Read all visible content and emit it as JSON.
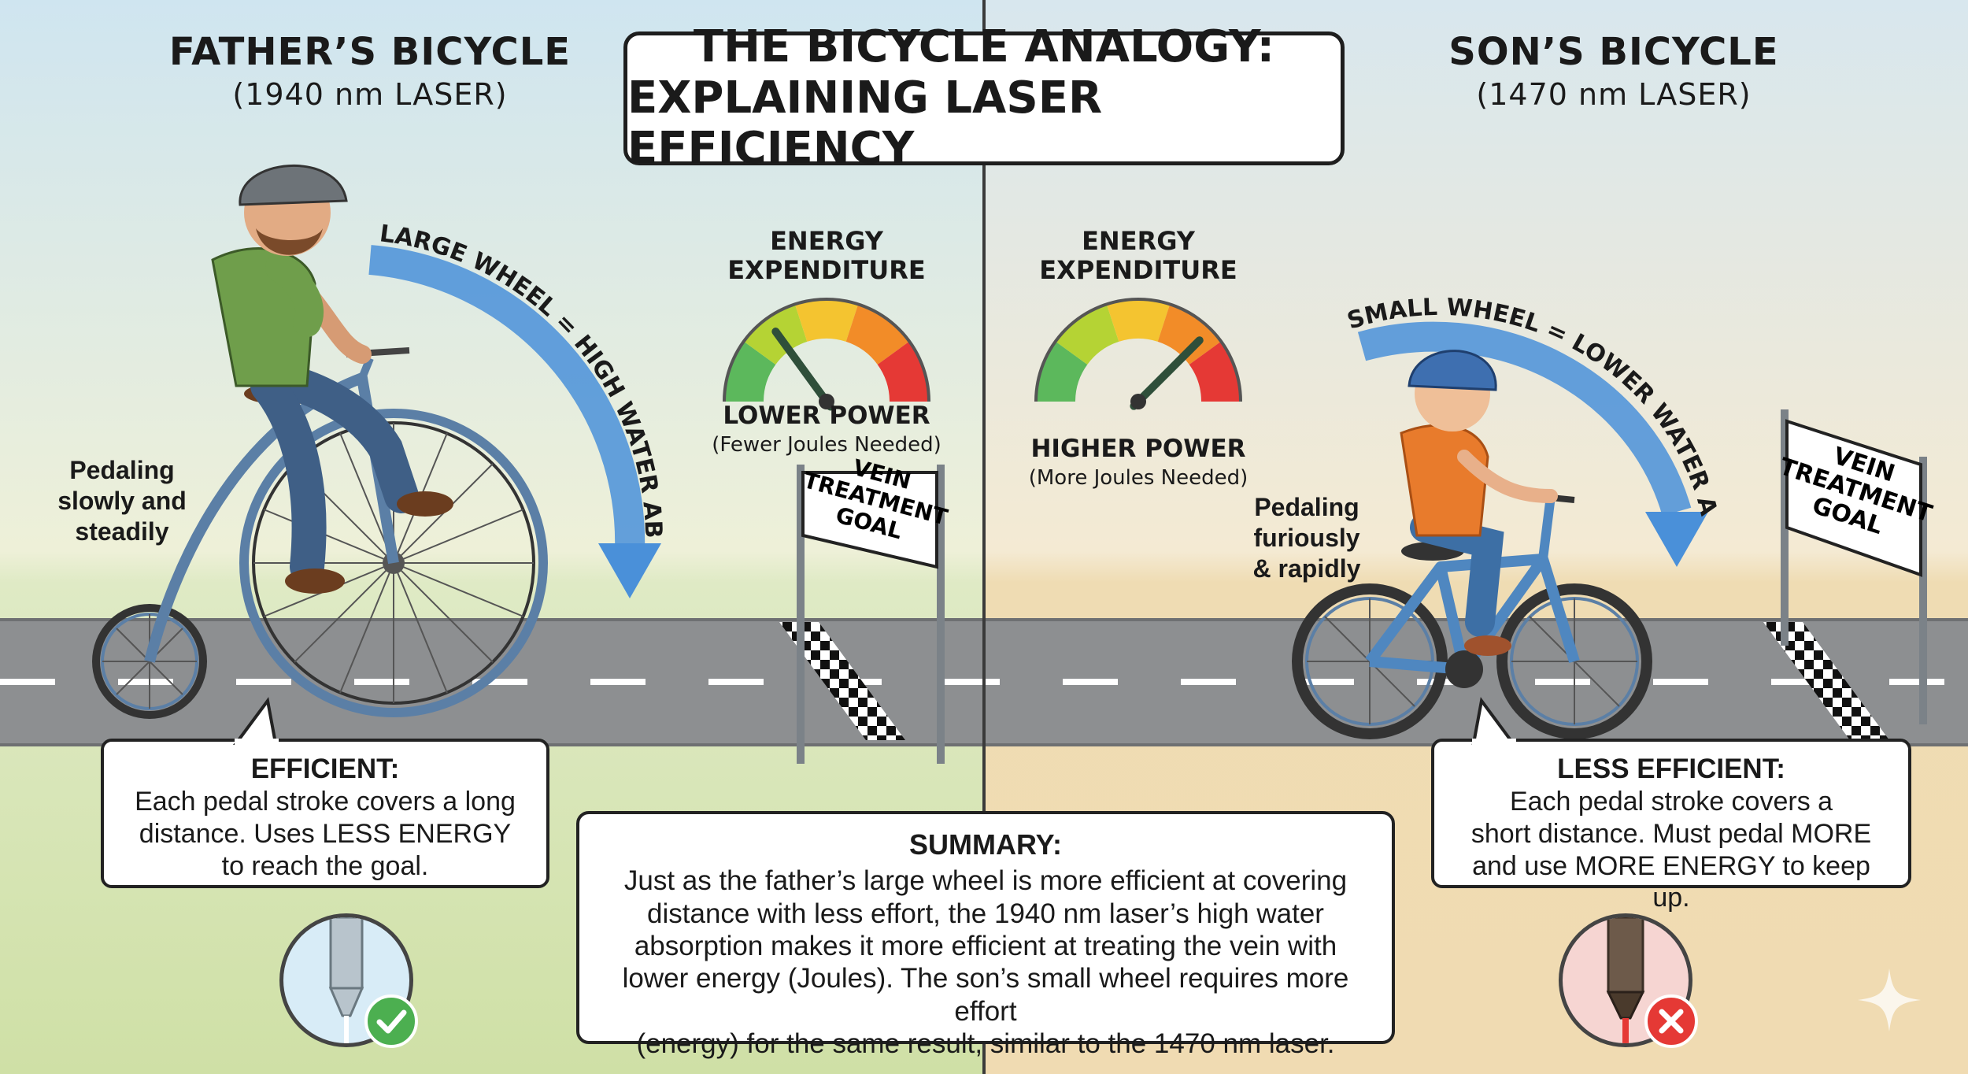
{
  "title": {
    "line1": "THE BICYCLE ANALOGY:",
    "line2": "EXPLAINING LASER EFFICIENCY"
  },
  "father": {
    "heading": "FATHER’S BICYCLE",
    "subheading": "(1940 nm LASER)",
    "arc_label": "LARGE WHEEL = HIGH WATER ABSORPTION",
    "pedal_note": [
      "Pedaling",
      "slowly and",
      "steadily"
    ],
    "gauge_title": [
      "ENERGY",
      "EXPENDITURE"
    ],
    "power_label": "LOWER POWER",
    "power_sub": "(Fewer Joules Needed)",
    "goal_sign": [
      "VEIN",
      "TREATMENT",
      "GOAL"
    ],
    "callout_title": "EFFICIENT:",
    "callout_lines": [
      "Each pedal stroke covers a long",
      "distance. Uses LESS ENERGY",
      "to reach the goal."
    ],
    "badge_icon": "checkmark-icon",
    "gauge_level": 0.3
  },
  "son": {
    "heading": "SON’S BICYCLE",
    "subheading": "(1470 nm LASER)",
    "arc_label": "SMALL WHEEL = LOWER WATER ABSORPTION",
    "pedal_note": [
      "Pedaling",
      "furiously",
      "& rapidly"
    ],
    "gauge_title": [
      "ENERGY",
      "EXPENDITURE"
    ],
    "power_label": "HIGHER POWER",
    "power_sub": "(More Joules Needed)",
    "goal_sign": [
      "VEIN",
      "TREATMENT",
      "GOAL"
    ],
    "callout_title": "LESS EFFICIENT:",
    "callout_lines": [
      "Each pedal stroke covers a",
      "short distance. Must pedal MORE",
      "and use MORE ENERGY to keep up."
    ],
    "badge_icon": "cross-icon",
    "gauge_level": 0.75
  },
  "summary": {
    "title": "SUMMARY:",
    "lines": [
      "Just as the father’s large wheel is more efficient at covering",
      "distance with less effort, the 1940 nm laser’s high water",
      "absorption makes it more efficient at treating the vein with",
      "lower energy (Joules). The son’s small wheel requires more effort",
      "(energy) for the same result, similar to the 1470 nm laser."
    ]
  },
  "colors": {
    "good": "#4caf50",
    "bad": "#e53935",
    "arrow": "#4a90d9",
    "bike": "#5b7fa6"
  }
}
